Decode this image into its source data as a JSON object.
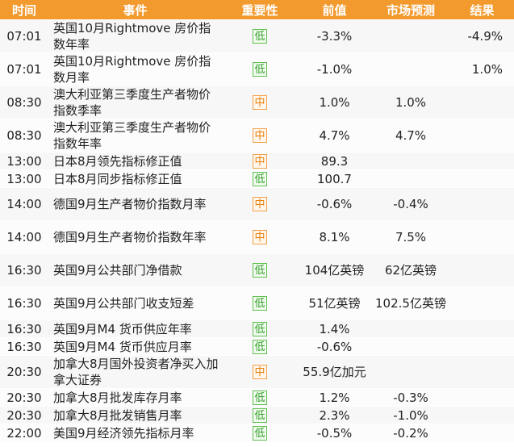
{
  "header": {
    "time": "时间",
    "event": "事件",
    "importance": "重要性",
    "previous": "前值",
    "forecast": "市场预测",
    "result": "结果"
  },
  "colors": {
    "header_bg": "#f39a2e",
    "low": "#2f9e26",
    "mid": "#e8820f"
  },
  "rows": [
    {
      "time": "07:01",
      "event": "英国10月Rightmove 房价指数年率",
      "importance": "低",
      "level": "low",
      "previous": "-3.3%",
      "forecast": "",
      "result": "-4.9%"
    },
    {
      "time": "07:01",
      "event": "英国10月Rightmove 房价指数月率",
      "importance": "低",
      "level": "low",
      "previous": "-1.0%",
      "forecast": "",
      "result": "1.0%"
    },
    {
      "time": "08:30",
      "event": "澳大利亚第三季度生产者物价指数季率",
      "importance": "中",
      "level": "mid",
      "previous": "1.0%",
      "forecast": "1.0%",
      "result": ""
    },
    {
      "time": "08:30",
      "event": "澳大利亚第三季度生产者物价指数年率",
      "importance": "中",
      "level": "mid",
      "previous": "4.7%",
      "forecast": "4.7%",
      "result": ""
    },
    {
      "time": "13:00",
      "event": "日本8月领先指标修正值",
      "importance": "中",
      "level": "mid",
      "previous": "89.3",
      "forecast": "",
      "result": ""
    },
    {
      "time": "13:00",
      "event": "日本8月同步指标修正值",
      "importance": "低",
      "level": "low",
      "previous": "100.7",
      "forecast": "",
      "result": ""
    },
    {
      "time": "14:00",
      "event": "德国9月生产者物价指数月率",
      "importance": "中",
      "level": "mid",
      "previous": "-0.6%",
      "forecast": "-0.4%",
      "result": ""
    },
    {
      "time": "14:00",
      "event": "德国9月生产者物价指数年率",
      "importance": "中",
      "level": "mid",
      "previous": "8.1%",
      "forecast": "7.5%",
      "result": ""
    },
    {
      "time": "16:30",
      "event": "英国9月公共部门净借款",
      "importance": "低",
      "level": "low",
      "previous": "104亿英镑",
      "forecast": "62亿英镑",
      "result": ""
    },
    {
      "time": "16:30",
      "event": "英国9月公共部门收支短差",
      "importance": "低",
      "level": "low",
      "previous": "51亿英镑",
      "forecast": "102.5亿英镑",
      "result": ""
    },
    {
      "time": "16:30",
      "event": "英国9月M4 货币供应年率",
      "importance": "低",
      "level": "low",
      "previous": "1.4%",
      "forecast": "",
      "result": ""
    },
    {
      "time": "16:30",
      "event": "英国9月M4 货币供应月率",
      "importance": "低",
      "level": "low",
      "previous": "-0.6%",
      "forecast": "",
      "result": ""
    },
    {
      "time": "20:30",
      "event": "加拿大8月国外投资者净买入加拿大证券",
      "importance": "中",
      "level": "mid",
      "previous": "55.9亿加元",
      "forecast": "",
      "result": ""
    },
    {
      "time": "20:30",
      "event": "加拿大8月批发库存月率",
      "importance": "低",
      "level": "low",
      "previous": "1.2%",
      "forecast": "-0.3%",
      "result": ""
    },
    {
      "time": "20:30",
      "event": "加拿大8月批发销售月率",
      "importance": "低",
      "level": "low",
      "previous": "2.3%",
      "forecast": "-1.0%",
      "result": ""
    },
    {
      "time": "22:00",
      "event": "美国9月经济领先指标月率",
      "importance": "低",
      "level": "low",
      "previous": "-0.5%",
      "forecast": "-0.2%",
      "result": ""
    }
  ]
}
